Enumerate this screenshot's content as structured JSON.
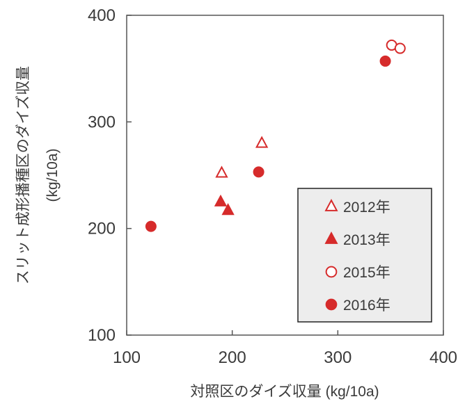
{
  "chart_data": {
    "type": "scatter",
    "xlabel": "対照区のダイズ収量 (kg/10a)",
    "ylabel_line1": "スリット成形播種区のダイズ収量",
    "ylabel_line2": "(kg/10a)",
    "xlim": [
      100,
      400
    ],
    "ylim": [
      100,
      400
    ],
    "xticks": [
      100,
      200,
      300,
      400
    ],
    "yticks": [
      100,
      200,
      300,
      400
    ],
    "grid": false,
    "legend_position": "bottom-right",
    "series": [
      {
        "name": "2012年",
        "marker": "triangle-open",
        "color": "#d62b2b",
        "points": [
          [
            190,
            252
          ],
          [
            228,
            280
          ]
        ]
      },
      {
        "name": "2013年",
        "marker": "triangle-filled",
        "color": "#d62b2b",
        "points": [
          [
            189,
            225
          ],
          [
            196,
            217
          ]
        ]
      },
      {
        "name": "2015年",
        "marker": "circle-open",
        "color": "#d62b2b",
        "points": [
          [
            351,
            372
          ],
          [
            359,
            369
          ]
        ]
      },
      {
        "name": "2016年",
        "marker": "circle-filled",
        "color": "#d62b2b",
        "points": [
          [
            123,
            202
          ],
          [
            225,
            253
          ],
          [
            345,
            357
          ]
        ]
      }
    ]
  }
}
